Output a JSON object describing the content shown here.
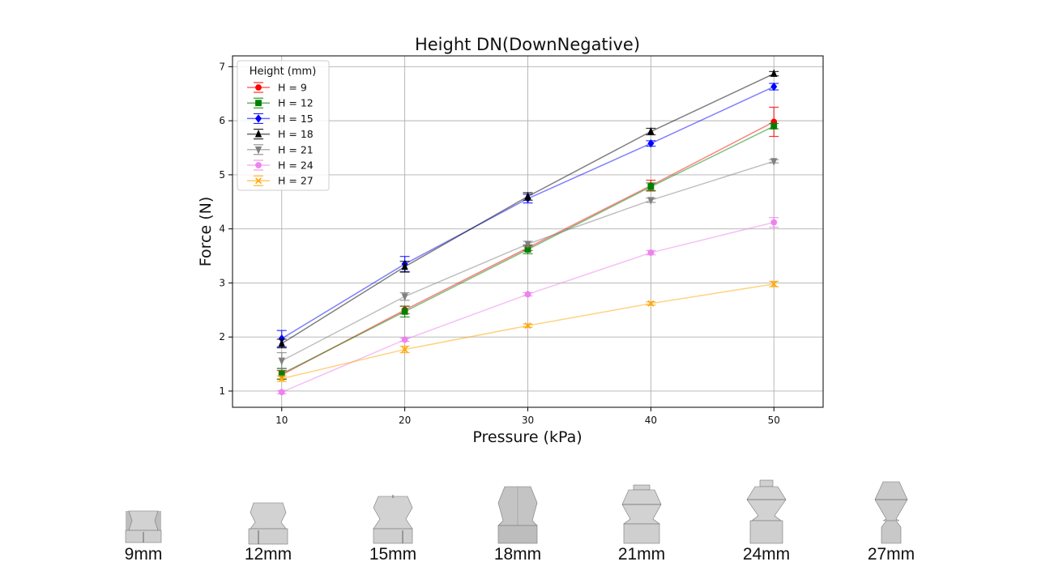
{
  "chart_data": {
    "type": "line",
    "title": "Height DN(DownNegative)",
    "xlabel": "Pressure (kPa)",
    "ylabel": "Force (N)",
    "x": [
      10,
      20,
      30,
      40,
      50
    ],
    "xlim": [
      6,
      54
    ],
    "ylim": [
      0.7,
      7.2
    ],
    "xticks": [
      10,
      20,
      30,
      40,
      50
    ],
    "yticks": [
      1,
      2,
      3,
      4,
      5,
      6,
      7
    ],
    "grid": true,
    "legend": {
      "title": "Height (mm)",
      "position": "top-left"
    },
    "series": [
      {
        "name": "H = 9",
        "color": "#ff0000",
        "marker": "circle",
        "values": [
          1.3,
          2.5,
          3.65,
          4.8,
          5.98
        ],
        "errors": [
          0.08,
          0.07,
          0.05,
          0.1,
          0.27
        ]
      },
      {
        "name": "H = 12",
        "color": "#008000",
        "marker": "square",
        "values": [
          1.32,
          2.47,
          3.62,
          4.78,
          5.9
        ],
        "errors": [
          0.1,
          0.1,
          0.08,
          0.07,
          0.05
        ]
      },
      {
        "name": "H = 15",
        "color": "#0000ff",
        "marker": "diamond",
        "values": [
          1.97,
          3.35,
          4.56,
          5.58,
          6.63
        ],
        "errors": [
          0.15,
          0.14,
          0.08,
          0.05,
          0.06
        ]
      },
      {
        "name": "H = 18",
        "color": "#000000",
        "marker": "triangle-up",
        "values": [
          1.88,
          3.3,
          4.6,
          5.8,
          6.87
        ],
        "errors": [
          0.08,
          0.1,
          0.07,
          0.06,
          0.04
        ]
      },
      {
        "name": "H = 21",
        "color": "#808080",
        "marker": "triangle-down",
        "values": [
          1.56,
          2.75,
          3.72,
          4.53,
          5.25
        ],
        "errors": [
          0.15,
          0.07,
          0.05,
          0.04,
          0.03
        ]
      },
      {
        "name": "H = 24",
        "color": "#ee82ee",
        "marker": "circle",
        "values": [
          0.98,
          1.95,
          2.79,
          3.56,
          4.12
        ],
        "errors": [
          0.03,
          0.03,
          0.03,
          0.04,
          0.09
        ]
      },
      {
        "name": "H = 27",
        "color": "#ffa500",
        "marker": "x",
        "values": [
          1.23,
          1.77,
          2.21,
          2.62,
          2.98
        ],
        "errors": [
          0.05,
          0.06,
          0.03,
          0.03,
          0.05
        ]
      }
    ]
  },
  "shapes": [
    {
      "label": "9mm"
    },
    {
      "label": "12mm"
    },
    {
      "label": "15mm"
    },
    {
      "label": "18mm"
    },
    {
      "label": "21mm"
    },
    {
      "label": "24mm"
    },
    {
      "label": "27mm"
    }
  ]
}
